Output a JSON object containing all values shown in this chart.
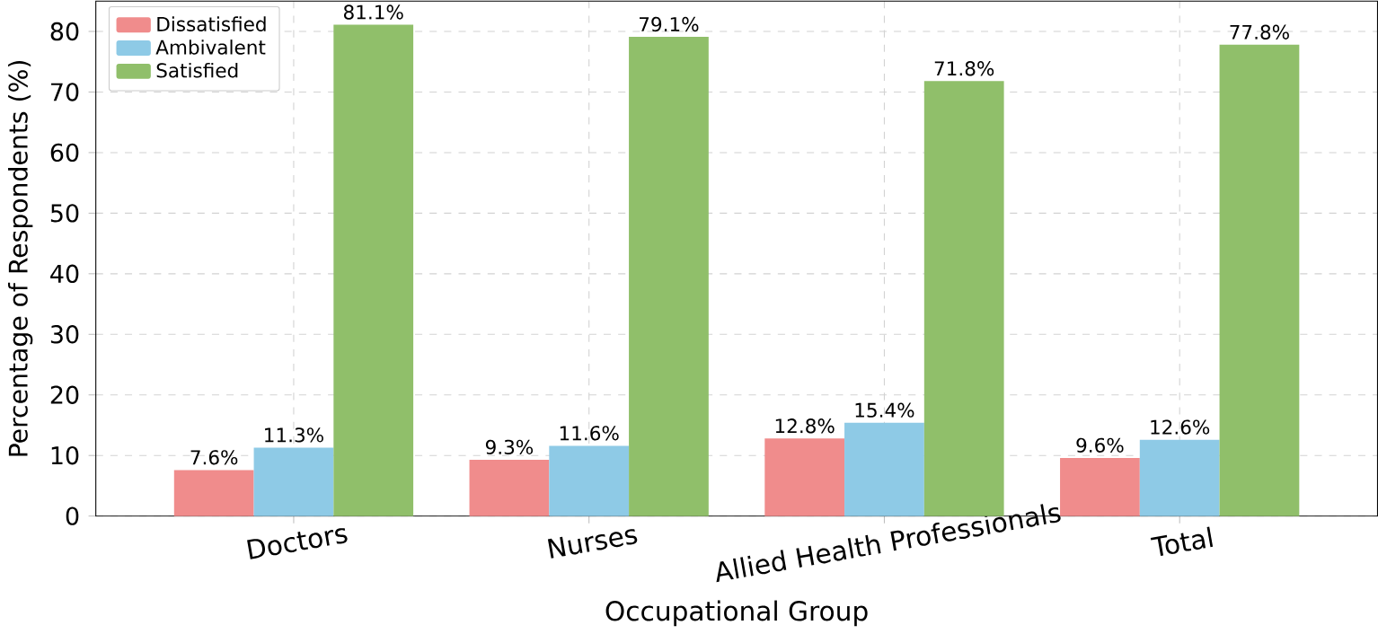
{
  "chart_data": {
    "type": "bar",
    "xlabel": "Occupational Group",
    "ylabel": "Percentage of Respondents (%)",
    "categories": [
      "Doctors",
      "Nurses",
      "Allied Health Professionals",
      "Total"
    ],
    "series": [
      {
        "name": "Dissatisfied",
        "color": "#f08c8c",
        "values": [
          7.6,
          9.3,
          12.8,
          9.6
        ],
        "value_labels": [
          "7.6%",
          "9.3%",
          "12.8%",
          "9.6%"
        ]
      },
      {
        "name": "Ambivalent",
        "color": "#8ecae6",
        "values": [
          11.3,
          11.6,
          15.4,
          12.6
        ],
        "value_labels": [
          "11.3%",
          "11.6%",
          "15.4%",
          "12.6%"
        ]
      },
      {
        "name": "Satisfied",
        "color": "#90bf6a",
        "values": [
          81.1,
          79.1,
          71.8,
          77.8
        ],
        "value_labels": [
          "81.1%",
          "79.1%",
          "71.8%",
          "77.8%"
        ]
      }
    ],
    "ylim": [
      0,
      85
    ],
    "yticks": [
      0,
      10,
      20,
      30,
      40,
      50,
      60,
      70,
      80
    ],
    "grid": true,
    "legend": "top left"
  }
}
